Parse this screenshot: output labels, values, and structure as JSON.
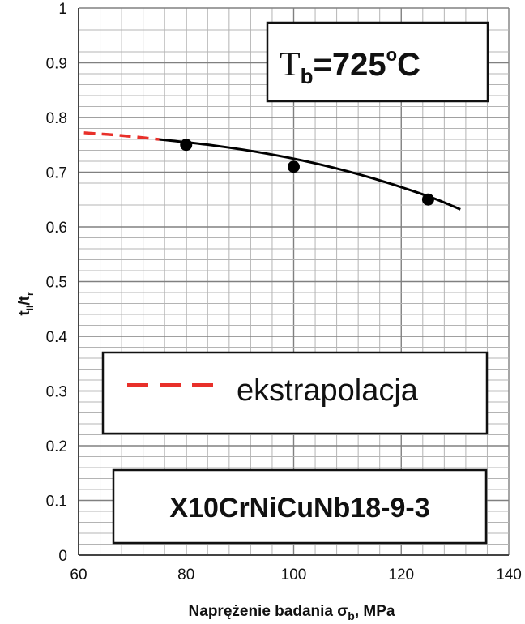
{
  "chart_data": {
    "type": "scatter",
    "xlabel": "Naprężenie badania σb, MPa",
    "xlabel_parts": {
      "before": "Naprężenie badania σ",
      "sub": "b",
      "after": ", MPa"
    },
    "ylabel_parts": {
      "t1": "t",
      "sub1": "II",
      "mid": "/t",
      "sub2": "r"
    },
    "xlim": [
      60,
      140
    ],
    "ylim": [
      0,
      1
    ],
    "x_ticks": [
      60,
      80,
      100,
      120,
      140
    ],
    "y_ticks": [
      0,
      0.1,
      0.2,
      0.3,
      0.4,
      0.5,
      0.6,
      0.7,
      0.8,
      0.9,
      1
    ],
    "y_tick_labels": [
      "0",
      "0.1",
      "0.2",
      "0.3",
      "0.4",
      "0.5",
      "0.6",
      "0.7",
      "0.8",
      "0.9",
      "1"
    ],
    "x_tick_labels": [
      "60",
      "80",
      "100",
      "120",
      "140"
    ],
    "grid": true,
    "series": [
      {
        "kind": "points",
        "color": "#000000",
        "x": [
          80,
          100,
          125
        ],
        "y": [
          0.75,
          0.71,
          0.65
        ]
      },
      {
        "kind": "fit-line",
        "color": "#000000",
        "x": [
          75,
          85,
          95,
          105,
          115,
          125,
          131
        ],
        "y": [
          0.76,
          0.749,
          0.734,
          0.714,
          0.688,
          0.656,
          0.632
        ]
      },
      {
        "kind": "extrapolation",
        "name": "ekstrapolacja",
        "color": "#e8302a",
        "x": [
          61,
          68,
          75
        ],
        "y": [
          0.772,
          0.767,
          0.76
        ]
      }
    ],
    "annotations": {
      "temperature": {
        "T": "T",
        "sub": "b",
        "value": "=725",
        "sup": "o",
        "unit": "C"
      },
      "material": "X10CrNiCuNb18-9-3"
    },
    "legend_placement": "center-left"
  }
}
